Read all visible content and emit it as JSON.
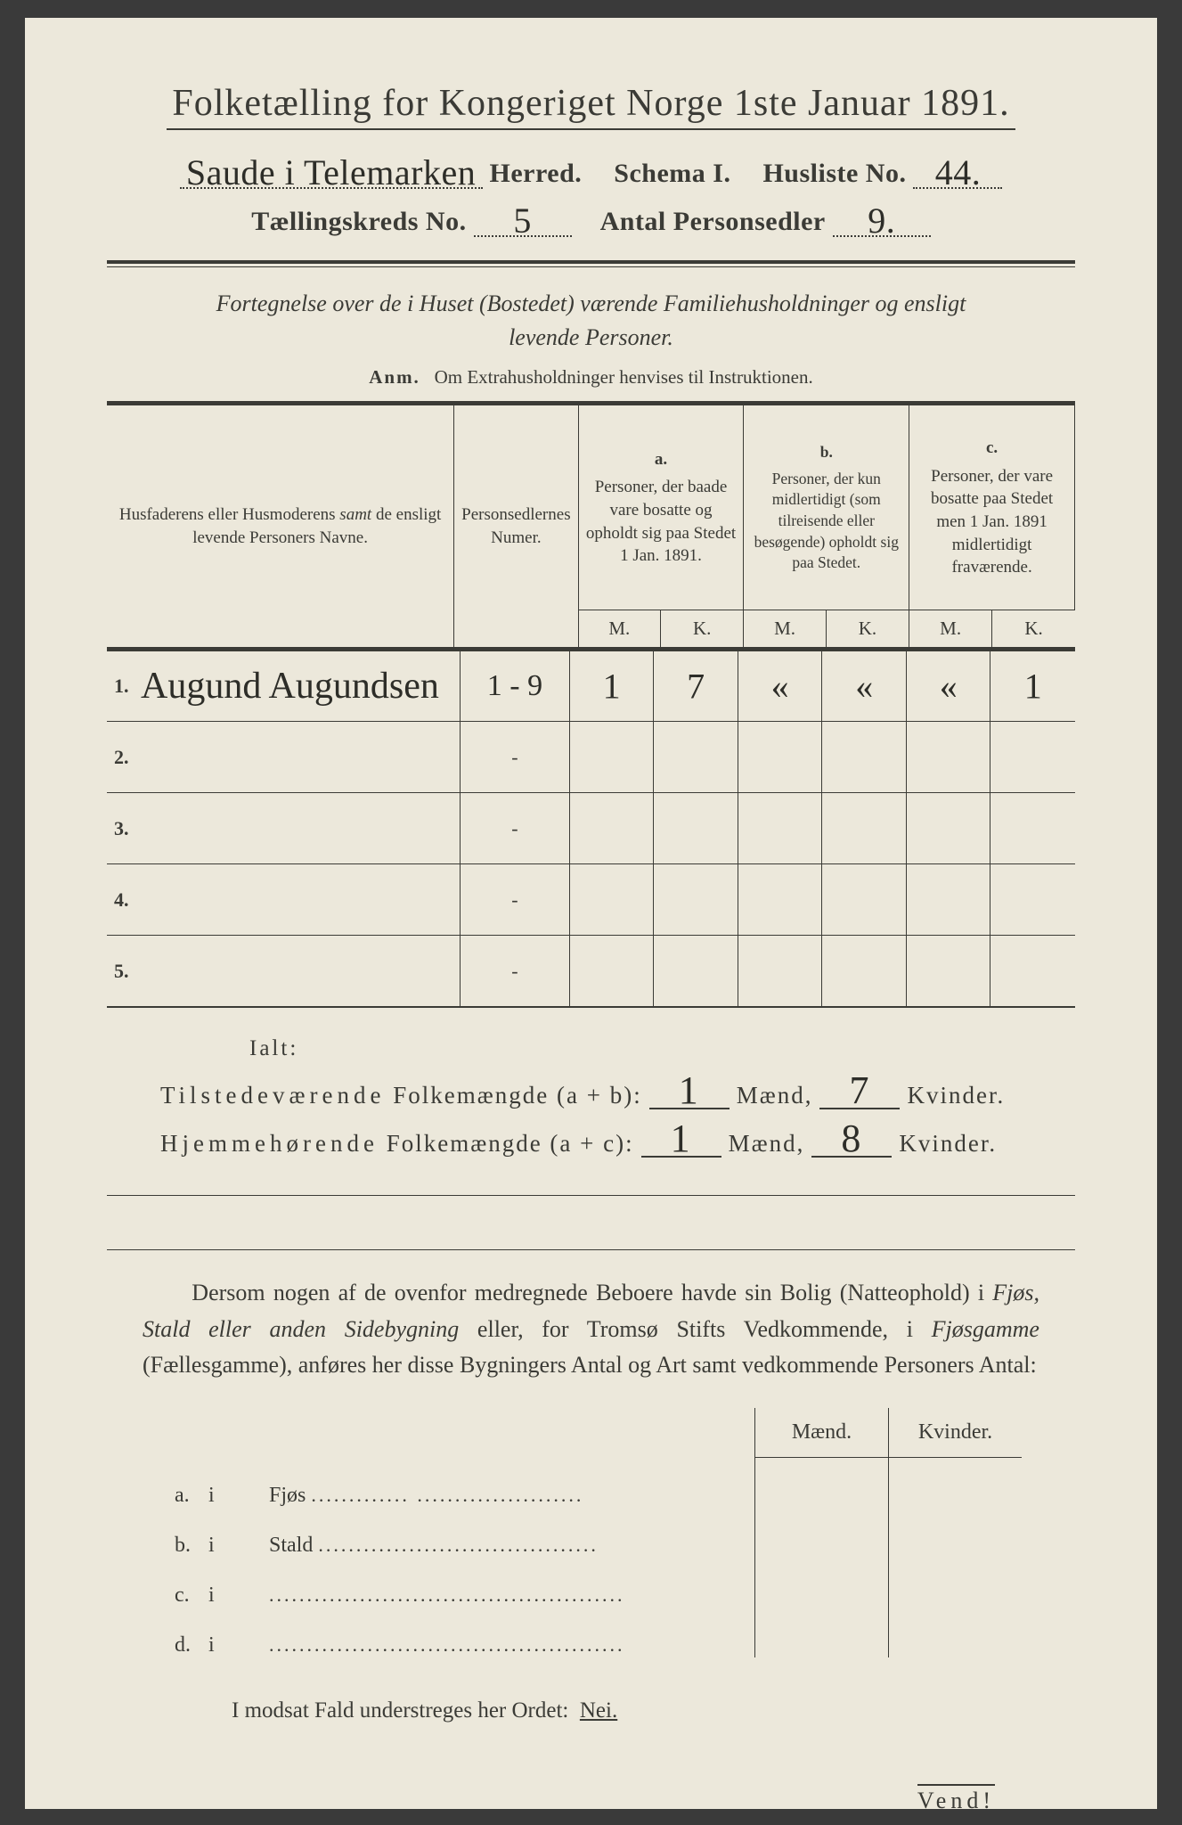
{
  "colors": {
    "paper": "#ece8db",
    "ink": "#3b3b36",
    "hand": "#2d2d28",
    "background": "#3a3a3a"
  },
  "typography": {
    "title_fontsize_pt": 32,
    "body_fontsize_pt": 20,
    "table_header_fontsize_pt": 15,
    "hand_fontsize_pt": 30
  },
  "header": {
    "title": "Folketælling for Kongeriget Norge 1ste Januar 1891.",
    "herred_hand": "Saude i Telemarken",
    "herred_label": "Herred.",
    "schema_label": "Schema I.",
    "husliste_label": "Husliste No.",
    "husliste_no": "44.",
    "kreds_label": "Tællingskreds No.",
    "kreds_no": "5",
    "antal_label": "Antal Personsedler",
    "antal_val": "9."
  },
  "subtitle": {
    "line1": "Fortegnelse over de i Huset (Bostedet) værende Familiehusholdninger og ensligt",
    "line2": "levende Personer."
  },
  "anm": {
    "prefix": "Anm.",
    "text": "Om Extrahusholdninger henvises til Instruktionen."
  },
  "table": {
    "head": {
      "col_name": "Husfaderens eller Husmoderens samt de ensligt levende Personers Navne.",
      "col_nr": "Personsedlernes Numer.",
      "col_a_lab": "a.",
      "col_a": "Personer, der baade vare bosatte og opholdt sig paa Stedet 1 Jan. 1891.",
      "col_b_lab": "b.",
      "col_b": "Personer, der kun midlertidigt (som tilreisende eller besøgende) opholdt sig paa Stedet.",
      "col_c_lab": "c.",
      "col_c": "Personer, der vare bosatte paa Stedet men 1 Jan. 1891 midlertidigt fraværende.",
      "M": "M.",
      "K": "K."
    },
    "rows": [
      {
        "n": "1.",
        "name": "Augund Augundsen",
        "nr": "1 - 9",
        "aM": "1",
        "aK": "7",
        "bM": "«",
        "bK": "«",
        "cM": "«",
        "cK": "1"
      },
      {
        "n": "2.",
        "name": "",
        "nr": "-",
        "aM": "",
        "aK": "",
        "bM": "",
        "bK": "",
        "cM": "",
        "cK": ""
      },
      {
        "n": "3.",
        "name": "",
        "nr": "-",
        "aM": "",
        "aK": "",
        "bM": "",
        "bK": "",
        "cM": "",
        "cK": ""
      },
      {
        "n": "4.",
        "name": "",
        "nr": "-",
        "aM": "",
        "aK": "",
        "bM": "",
        "bK": "",
        "cM": "",
        "cK": ""
      },
      {
        "n": "5.",
        "name": "",
        "nr": "-",
        "aM": "",
        "aK": "",
        "bM": "",
        "bK": "",
        "cM": "",
        "cK": ""
      }
    ]
  },
  "totals": {
    "ialt": "Ialt:",
    "line1_label": "Tilstedeværende Folkemængde (a + b):",
    "line2_label": "Hjemmehørende Folkemængde (a + c):",
    "maend": "Mænd,",
    "kvinder": "Kvinder.",
    "l1_m": "1",
    "l1_k": "7",
    "l2_m": "1",
    "l2_k": "8"
  },
  "lower": {
    "para": "Dersom nogen af de ovenfor medregnede Beboere havde sin Bolig (Natteophold) i Fjøs, Stald eller anden Sidebygning eller, for Tromsø Stifts Vedkommende, i Fjøsgamme (Fællesgamme), anføres her disse Bygningers Antal og Art samt vedkommende Personers Antal:",
    "maend": "Mænd.",
    "kvinder": "Kvinder.",
    "rows": [
      {
        "k": "a.",
        "i": "i",
        "label": "Fjøs",
        "dots": "............. ......................"
      },
      {
        "k": "b.",
        "i": "i",
        "label": "Stald",
        "dots": "....................................."
      },
      {
        "k": "c.",
        "i": "i",
        "label": "",
        "dots": "..............................................."
      },
      {
        "k": "d.",
        "i": "i",
        "label": "",
        "dots": "..............................................."
      }
    ],
    "nei": "I modsat Fald understreges her Ordet:",
    "nei_word": "Nei.",
    "vend": "Vend!"
  }
}
